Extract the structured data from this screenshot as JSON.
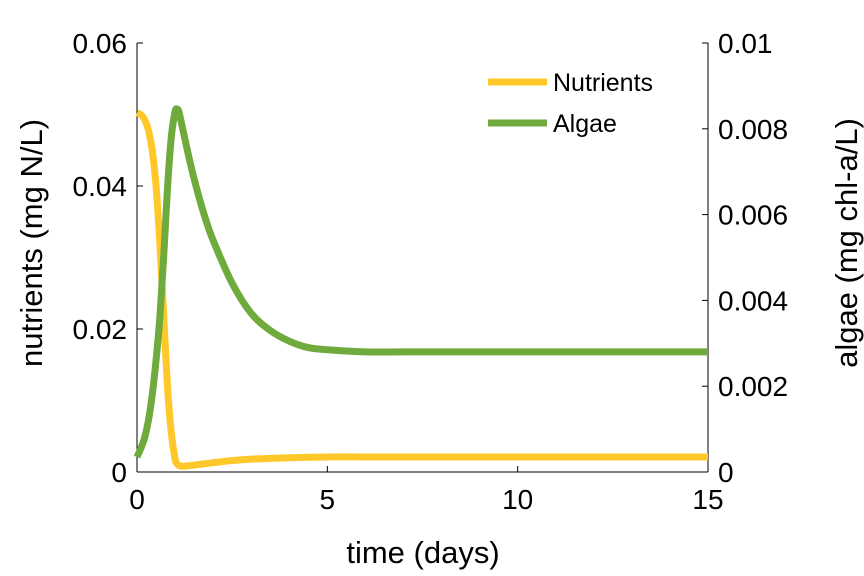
{
  "chart_data": {
    "type": "line",
    "xlabel": "time (days)",
    "ylabel_left": "nutrients (mg N/L)",
    "ylabel_right": "algae (mg chl-a/L)",
    "xlim": [
      0,
      15
    ],
    "ylim_left": [
      0,
      0.06
    ],
    "ylim_right": [
      0,
      0.01
    ],
    "xticks": [
      "0",
      "5",
      "10",
      "15"
    ],
    "yticks_left": [
      "0",
      "0.02",
      "0.04",
      "0.06"
    ],
    "yticks_right": [
      "0",
      "0.002",
      "0.004",
      "0.006",
      "0.008",
      "0.01"
    ],
    "grid": false,
    "legend_position": "top-right",
    "series": [
      {
        "name": "Nutrients",
        "axis": "left",
        "color": "#FFC82A",
        "x": [
          0,
          0.1,
          0.2,
          0.3,
          0.4,
          0.5,
          0.6,
          0.7,
          0.8,
          0.9,
          1.0,
          1.05,
          1.1,
          1.2,
          1.4,
          1.7,
          2,
          2.5,
          3,
          3.5,
          4,
          5,
          6,
          8,
          10,
          12,
          15
        ],
        "y": [
          0.0502,
          0.05,
          0.0493,
          0.0478,
          0.045,
          0.04,
          0.032,
          0.022,
          0.012,
          0.0055,
          0.0018,
          0.0012,
          0.0009,
          0.0008,
          0.0009,
          0.0011,
          0.0013,
          0.0016,
          0.0018,
          0.0019,
          0.002,
          0.0021,
          0.0021,
          0.0021,
          0.0021,
          0.0021,
          0.0021
        ]
      },
      {
        "name": "Algae",
        "axis": "right",
        "color": "#6EAA3C",
        "x": [
          0,
          0.1,
          0.2,
          0.3,
          0.4,
          0.5,
          0.6,
          0.7,
          0.8,
          0.9,
          1.0,
          1.05,
          1.1,
          1.2,
          1.4,
          1.6,
          1.8,
          2,
          2.5,
          3,
          3.5,
          4,
          4.5,
          5,
          6,
          7,
          8,
          10,
          12,
          15
        ],
        "y": [
          0.00035,
          0.00055,
          0.0008,
          0.0012,
          0.0018,
          0.0026,
          0.0036,
          0.005,
          0.0066,
          0.0078,
          0.0084,
          0.00845,
          0.0084,
          0.008,
          0.0072,
          0.0065,
          0.0059,
          0.0054,
          0.0044,
          0.0037,
          0.0033,
          0.00305,
          0.0029,
          0.00285,
          0.0028,
          0.0028,
          0.0028,
          0.0028,
          0.0028,
          0.0028
        ]
      }
    ]
  }
}
